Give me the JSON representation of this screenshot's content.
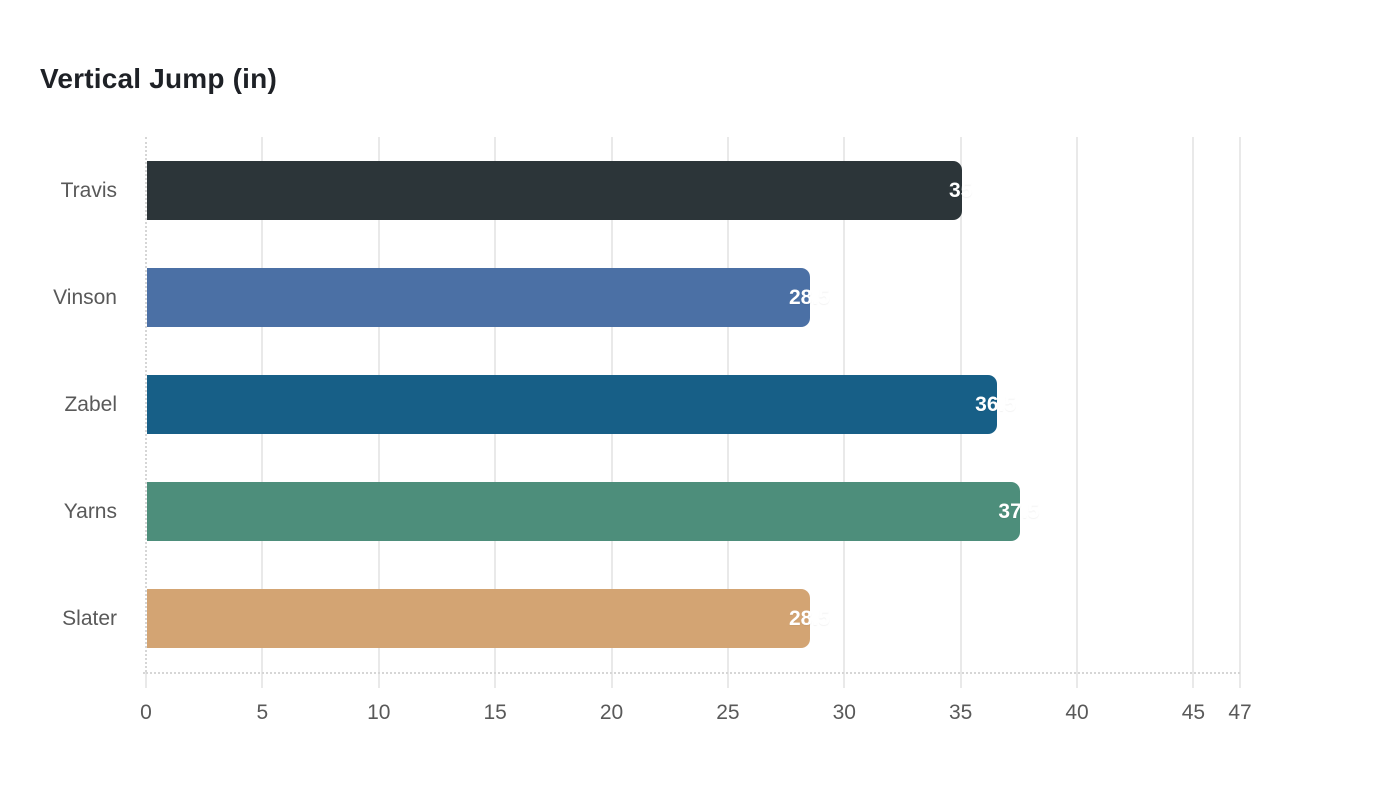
{
  "chart_data": {
    "type": "bar",
    "orientation": "horizontal",
    "title": "Vertical Jump (in)",
    "categories": [
      "Travis",
      "Vinson",
      "Zabel",
      "Yarns",
      "Slater"
    ],
    "values": [
      35,
      28.5,
      36.5,
      37.5,
      28.5
    ],
    "value_labels": [
      "35",
      "28.5",
      "36.5",
      "37.5",
      "28.5"
    ],
    "bar_colors": [
      "#2c3539",
      "#4b70a5",
      "#175f87",
      "#4d8e7b",
      "#d3a473"
    ],
    "xlim": [
      0,
      47
    ],
    "xticks": [
      0,
      5,
      10,
      15,
      20,
      25,
      30,
      35,
      40,
      45,
      47
    ],
    "grid": true,
    "legend": false,
    "colors": {
      "background": "#ffffff",
      "title_text": "#1e2126",
      "axis_text": "#595959",
      "gridline": "#e9e9e9",
      "axis_dash": "#d6d6d6",
      "value_label_text": "#ffffff"
    }
  }
}
